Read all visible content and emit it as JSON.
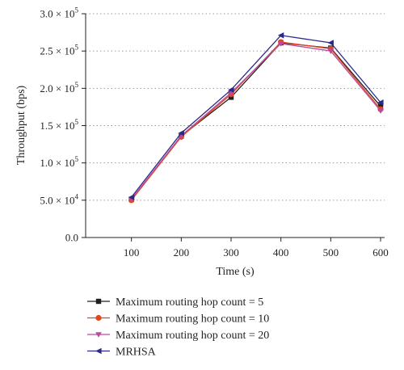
{
  "chart_data": {
    "type": "line",
    "xlabel": "Time (s)",
    "ylabel": "Throughput (bps)",
    "x": [
      100,
      200,
      300,
      400,
      500,
      600
    ],
    "xlim": [
      0,
      600
    ],
    "ylim": [
      0,
      300000
    ],
    "x_ticks": [
      100,
      200,
      300,
      400,
      500,
      600
    ],
    "y_ticks": [
      {
        "value": 0,
        "mant": "0.0",
        "exp": ""
      },
      {
        "value": 50000,
        "mant": "5.0 × 10",
        "exp": "4"
      },
      {
        "value": 100000,
        "mant": "1.0 × 10",
        "exp": "5"
      },
      {
        "value": 150000,
        "mant": "1.5 × 10",
        "exp": "5"
      },
      {
        "value": 200000,
        "mant": "2.0 × 10",
        "exp": "5"
      },
      {
        "value": 250000,
        "mant": "2.5 × 10",
        "exp": "5"
      },
      {
        "value": 300000,
        "mant": "3.0 × 10",
        "exp": "5"
      }
    ],
    "grid": "horizontal dotted",
    "legend_position": "below",
    "series": [
      {
        "name": "Maximum routing hop count = 5",
        "color": "#231f20",
        "marker": "square",
        "values": [
          51000,
          136000,
          188000,
          261000,
          254000,
          176000
        ]
      },
      {
        "name": "Maximum routing hop count = 10",
        "color": "#e0461f",
        "marker": "circle",
        "values": [
          50000,
          135000,
          192000,
          262000,
          253000,
          172000
        ]
      },
      {
        "name": "Maximum routing hop count = 20",
        "color": "#b94a9e",
        "marker": "triangle-down",
        "values": [
          51500,
          136500,
          194000,
          260000,
          250000,
          170000
        ]
      },
      {
        "name": "MRHSA",
        "color": "#2b2a86",
        "marker": "triangle-left",
        "values": [
          54000,
          140000,
          198000,
          271000,
          261000,
          181000
        ]
      }
    ]
  }
}
